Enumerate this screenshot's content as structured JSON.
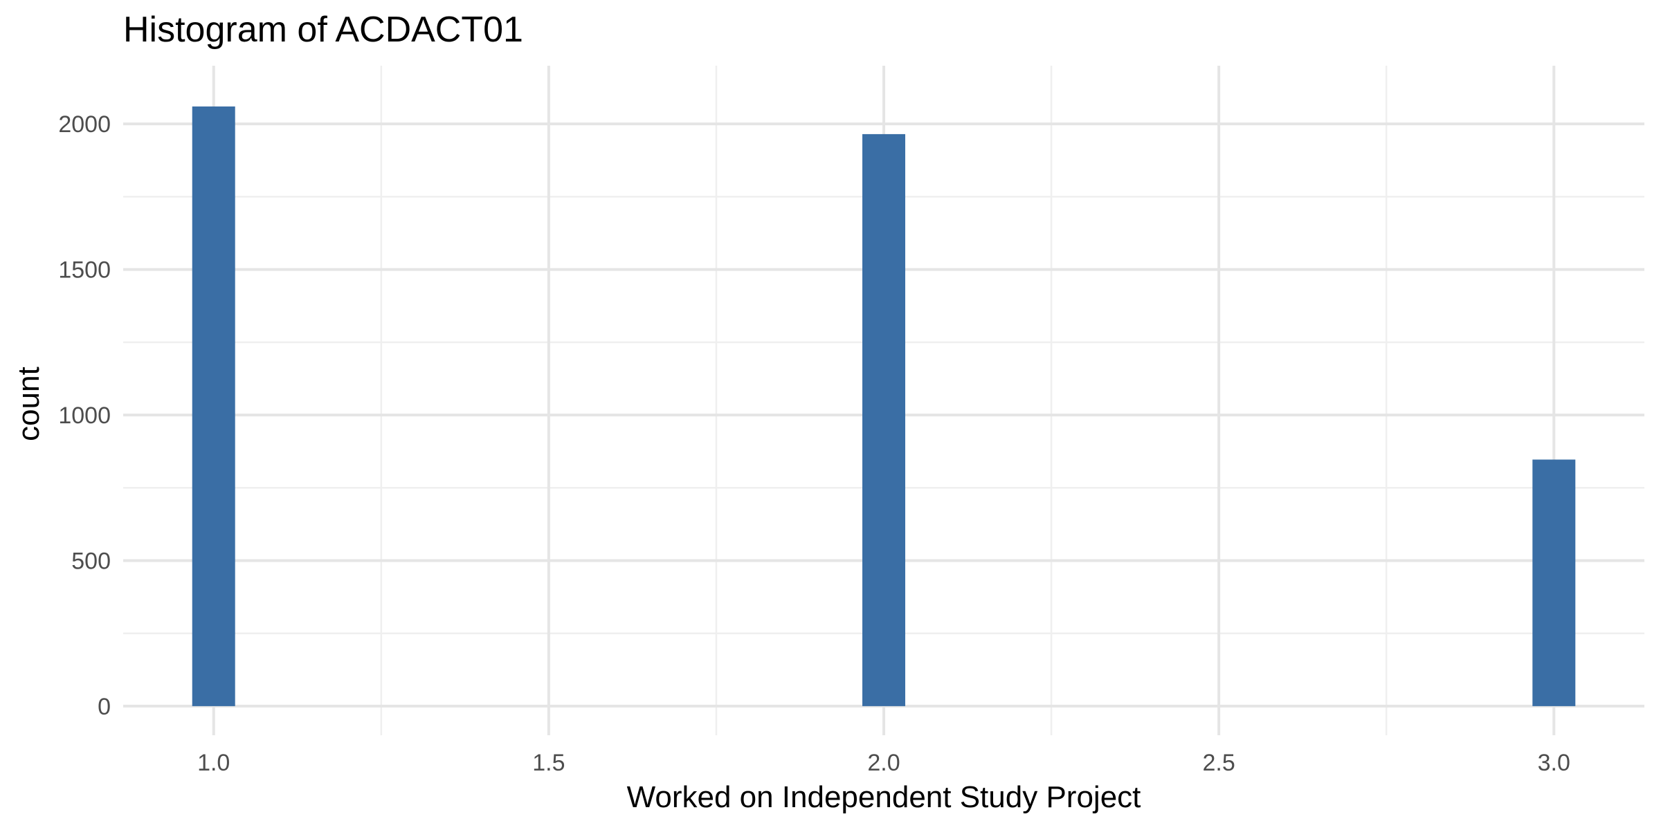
{
  "chart_data": {
    "type": "bar",
    "title": "Histogram of ACDACT01",
    "xlabel": "Worked on Independent Study Project",
    "ylabel": "count",
    "bar_color": "#3a6ea5",
    "grid": true,
    "legend": "none",
    "xlim": [
      0.865,
      3.135
    ],
    "ylim": [
      -100,
      2200
    ],
    "x_ticks": [
      "1.0",
      "1.5",
      "2.0",
      "2.5",
      "3.0"
    ],
    "y_ticks": [
      "0",
      "500",
      "1000",
      "1500",
      "2000"
    ],
    "bars": [
      {
        "x": 1.0,
        "width": 0.064,
        "value": 2060
      },
      {
        "x": 2.0,
        "width": 0.064,
        "value": 1965
      },
      {
        "x": 3.0,
        "width": 0.064,
        "value": 847
      }
    ]
  }
}
